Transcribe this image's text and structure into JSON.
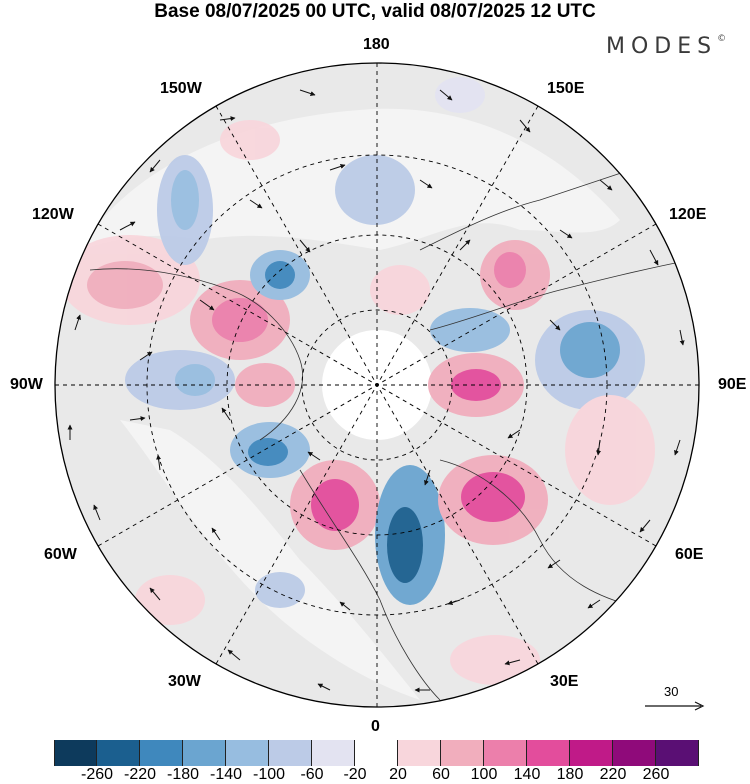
{
  "title": "Base 08/07/2025 00 UTC, valid 08/07/2025 12 UTC",
  "brand": "MODES",
  "brand_mark": "©",
  "longitude_labels": {
    "top": "180",
    "bottom": "0",
    "left": "90W",
    "right": "90E",
    "upper_left_1": "150W",
    "upper_left_2": "120W",
    "upper_right_1": "150E",
    "upper_right_2": "120E",
    "lower_left_1": "60W",
    "lower_left_2": "30W",
    "lower_right_1": "60E",
    "lower_right_2": "30E"
  },
  "vector_scale": {
    "label": "30"
  },
  "colorbar": {
    "colors": [
      "#0d3a5c",
      "#1b5f8f",
      "#3f88bd",
      "#6ba5d0",
      "#97bde0",
      "#bccbe7",
      "#e3e3f1",
      "#ffffff",
      "#f8d6dc",
      "#f1aebd",
      "#ec7fab",
      "#e34d9c",
      "#c01a88",
      "#8f0a7a",
      "#5a0f74"
    ],
    "ticks": [
      "-260",
      "-220",
      "-180",
      "-140",
      "-100",
      "-60",
      "-20",
      "20",
      "60",
      "100",
      "140",
      "180",
      "220",
      "260"
    ]
  },
  "legend_colors": {
    "land": "#e8e8e8",
    "ocean": "#ffffff",
    "grid": "#000000"
  }
}
